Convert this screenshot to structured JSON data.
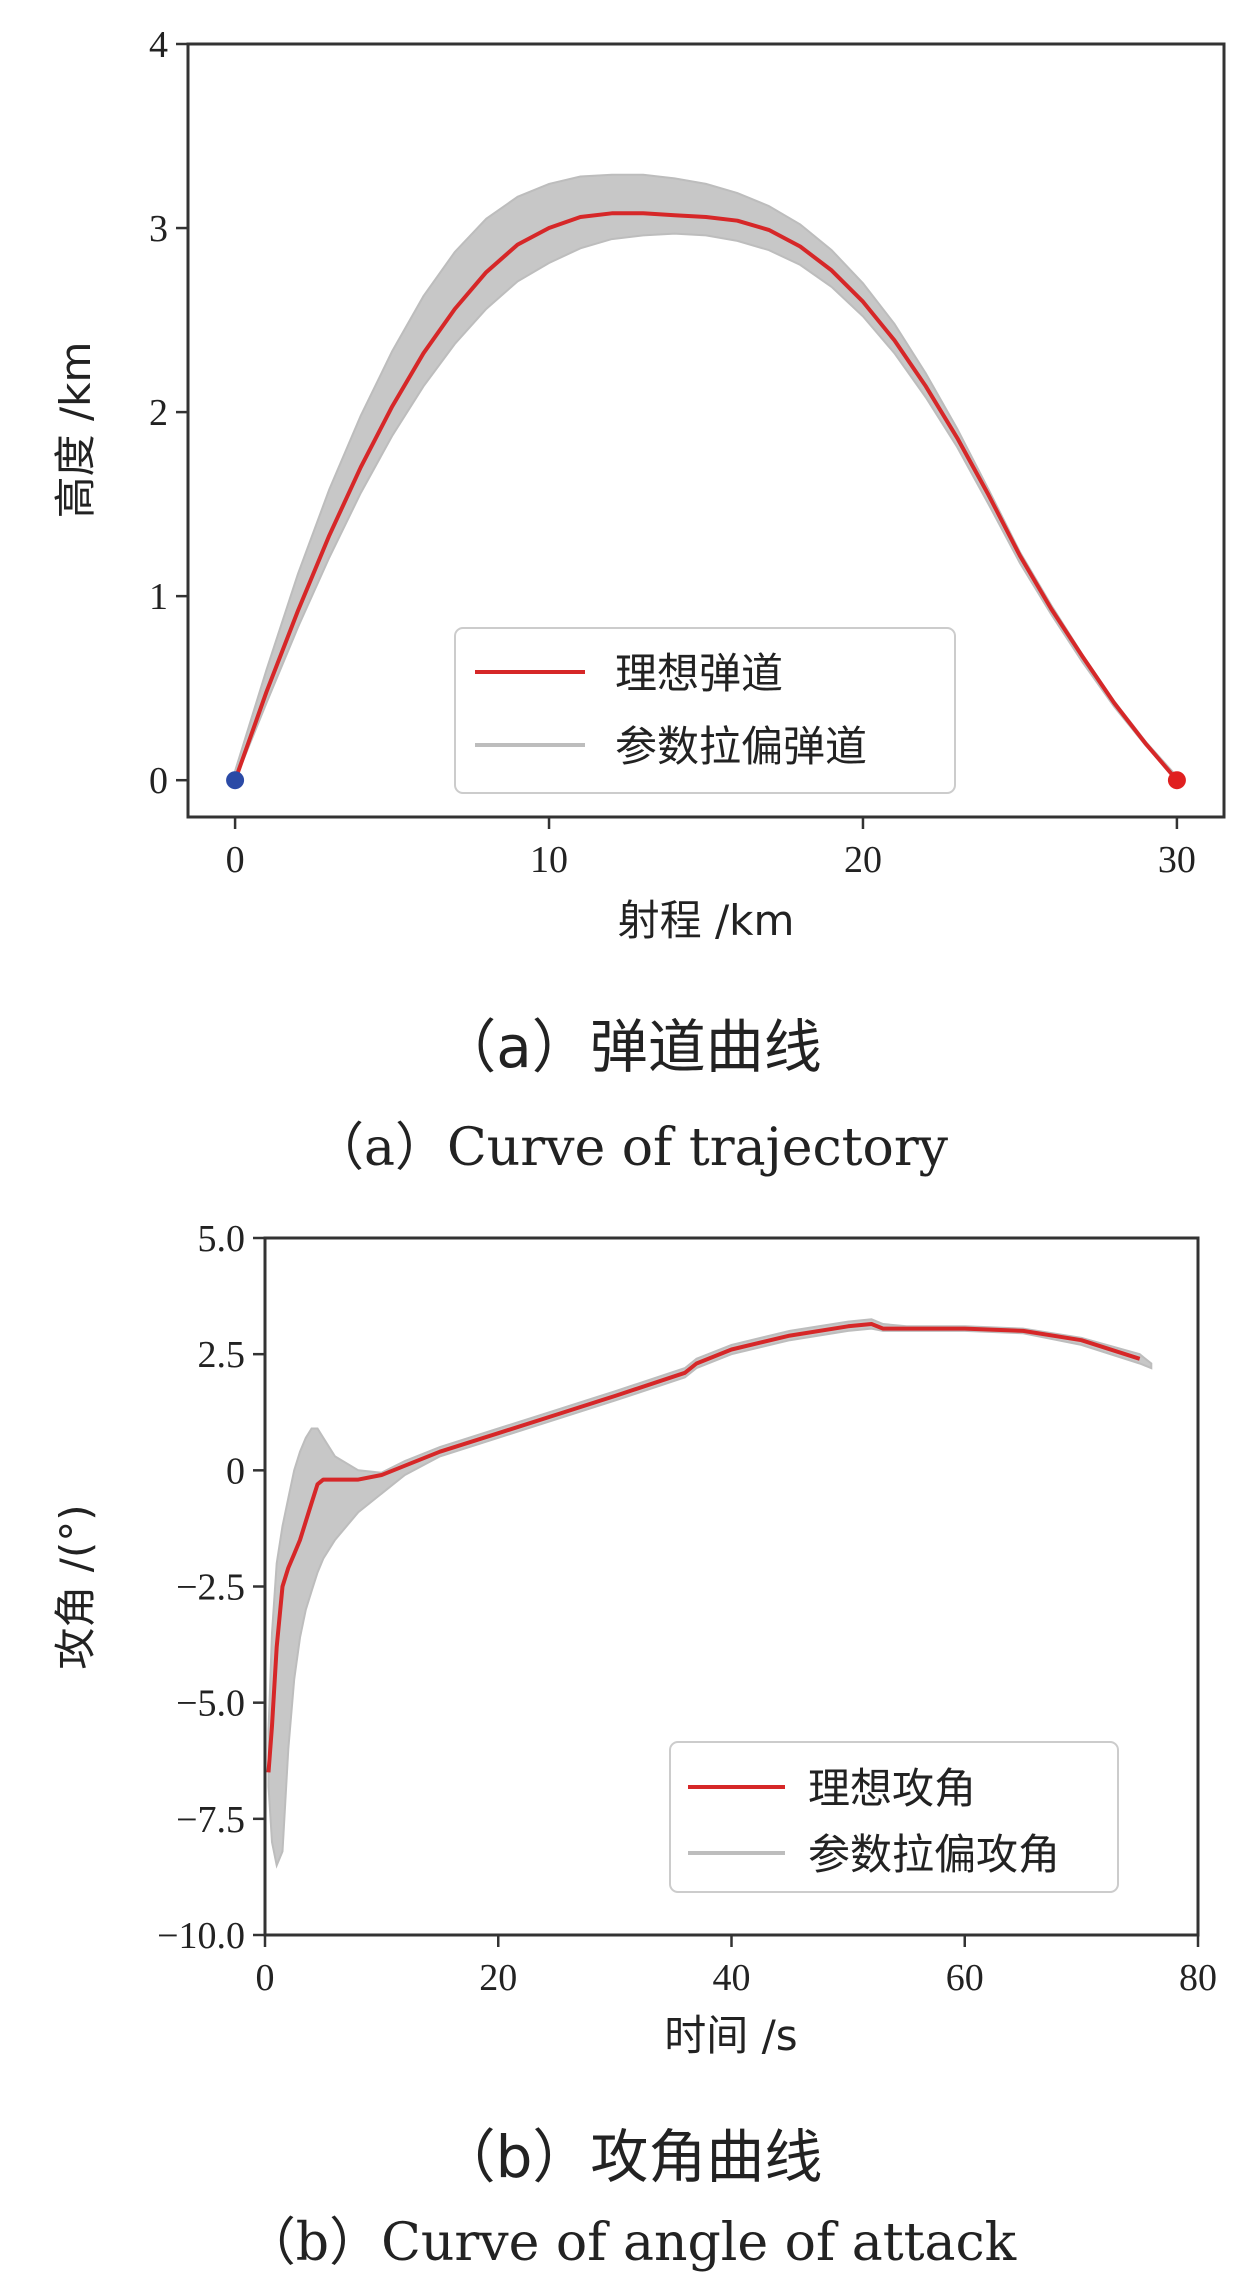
{
  "chart_data": [
    {
      "type": "line",
      "xlabel": "射程 /km",
      "ylabel": "高度 /km",
      "xlim": [
        -1.5,
        31.5
      ],
      "ylim": [
        -0.2,
        4
      ],
      "xticks": [
        0,
        10,
        20,
        30
      ],
      "yticks": [
        0,
        1,
        2,
        3,
        4
      ],
      "grid": false,
      "legend_position": "lower-center",
      "series": [
        {
          "name": "理想弹道",
          "color": "#d62728",
          "x": [
            0,
            1,
            2,
            3,
            4,
            5,
            6,
            7,
            8,
            9,
            10,
            11,
            12,
            13,
            14,
            15,
            16,
            17,
            18,
            19,
            20,
            21,
            22,
            23,
            24,
            25,
            26,
            27,
            28,
            29,
            30
          ],
          "y": [
            0,
            0.48,
            0.92,
            1.33,
            1.7,
            2.03,
            2.32,
            2.56,
            2.76,
            2.91,
            3.0,
            3.06,
            3.08,
            3.08,
            3.07,
            3.06,
            3.04,
            2.99,
            2.9,
            2.77,
            2.6,
            2.39,
            2.14,
            1.86,
            1.55,
            1.22,
            0.93,
            0.67,
            0.42,
            0.2,
            0
          ]
        },
        {
          "name": "参数拉偏弹道",
          "color": "#bdbdbd",
          "band_x": [
            0,
            1,
            2,
            3,
            4,
            5,
            6,
            7,
            8,
            9,
            10,
            11,
            12,
            13,
            14,
            15,
            16,
            17,
            18,
            19,
            20,
            21,
            22,
            23,
            24,
            25,
            26,
            27,
            28,
            29,
            30
          ],
          "band_lower": [
            0,
            0.42,
            0.83,
            1.21,
            1.56,
            1.87,
            2.14,
            2.37,
            2.56,
            2.71,
            2.81,
            2.89,
            2.94,
            2.96,
            2.97,
            2.96,
            2.93,
            2.88,
            2.8,
            2.68,
            2.52,
            2.32,
            2.08,
            1.81,
            1.5,
            1.18,
            0.9,
            0.64,
            0.4,
            0.19,
            0
          ],
          "band_upper": [
            0.05,
            0.6,
            1.12,
            1.58,
            1.98,
            2.33,
            2.63,
            2.87,
            3.05,
            3.17,
            3.24,
            3.28,
            3.29,
            3.29,
            3.27,
            3.24,
            3.19,
            3.12,
            3.02,
            2.88,
            2.7,
            2.48,
            2.21,
            1.91,
            1.58,
            1.24,
            0.95,
            0.68,
            0.43,
            0.21,
            0.02
          ]
        }
      ],
      "markers": [
        {
          "x": 0,
          "y": 0,
          "color": "#2b4aa6"
        },
        {
          "x": 30,
          "y": 0,
          "color": "#e02020"
        }
      ],
      "caption_zh": "（a）弹道曲线",
      "caption_en": "（a）Curve of trajectory"
    },
    {
      "type": "line",
      "xlabel": "时间 /s",
      "ylabel": "攻角 /(°)",
      "xlim": [
        0,
        80
      ],
      "ylim": [
        -10,
        5
      ],
      "xticks": [
        0,
        20,
        40,
        60,
        80
      ],
      "yticks": [
        -10.0,
        -7.5,
        -5.0,
        -2.5,
        0,
        2.5,
        5.0
      ],
      "ytick_labels": [
        "−10.0",
        "−7.5",
        "−5.0",
        "−2.5",
        "0",
        "2.5",
        "5.0"
      ],
      "grid": false,
      "legend_position": "lower-right",
      "series": [
        {
          "name": "理想攻角",
          "color": "#d62728",
          "x": [
            0.3,
            0.6,
            1.0,
            1.5,
            2.0,
            2.5,
            3.0,
            3.5,
            4.0,
            4.5,
            5.0,
            6.0,
            8.0,
            10.0,
            12.0,
            15.0,
            20.0,
            25.0,
            30.0,
            36.0,
            37.0,
            40.0,
            45.0,
            50.0,
            52.0,
            53.0,
            55.0,
            60.0,
            65.0,
            70.0,
            75.0
          ],
          "y": [
            -6.5,
            -5.5,
            -3.8,
            -2.5,
            -2.1,
            -1.8,
            -1.5,
            -1.1,
            -0.7,
            -0.3,
            -0.2,
            -0.2,
            -0.2,
            -0.1,
            0.1,
            0.4,
            0.8,
            1.2,
            1.6,
            2.1,
            2.3,
            2.6,
            2.9,
            3.1,
            3.15,
            3.05,
            3.05,
            3.05,
            3.0,
            2.8,
            2.4
          ]
        },
        {
          "name": "参数拉偏攻角",
          "color": "#bdbdbd",
          "band_x": [
            0.3,
            0.6,
            1.0,
            1.5,
            2.0,
            2.5,
            3.0,
            3.5,
            4.0,
            4.5,
            5.0,
            6.0,
            8.0,
            10.0,
            12.0,
            15.0,
            20.0,
            25.0,
            30.0,
            36.0,
            37.0,
            40.0,
            45.0,
            50.0,
            52.0,
            53.0,
            55.0,
            60.0,
            65.0,
            70.0,
            75.0,
            76.0
          ],
          "band_lower": [
            -6.8,
            -8.0,
            -8.5,
            -8.2,
            -6.0,
            -4.5,
            -3.6,
            -3.0,
            -2.6,
            -2.2,
            -1.9,
            -1.5,
            -0.9,
            -0.5,
            -0.1,
            0.3,
            0.7,
            1.1,
            1.5,
            2.0,
            2.2,
            2.5,
            2.8,
            3.0,
            3.05,
            3.0,
            3.0,
            3.0,
            2.95,
            2.7,
            2.3,
            2.2
          ],
          "band_upper": [
            -5.6,
            -3.5,
            -2.0,
            -1.2,
            -0.6,
            0.0,
            0.4,
            0.7,
            0.9,
            0.9,
            0.7,
            0.3,
            0.0,
            -0.05,
            0.2,
            0.5,
            0.9,
            1.3,
            1.7,
            2.2,
            2.4,
            2.7,
            3.0,
            3.2,
            3.25,
            3.15,
            3.1,
            3.1,
            3.05,
            2.85,
            2.5,
            2.3
          ]
        }
      ],
      "caption_zh": "（b）攻角曲线",
      "caption_en": "（b）Curve of angle of attack"
    }
  ]
}
